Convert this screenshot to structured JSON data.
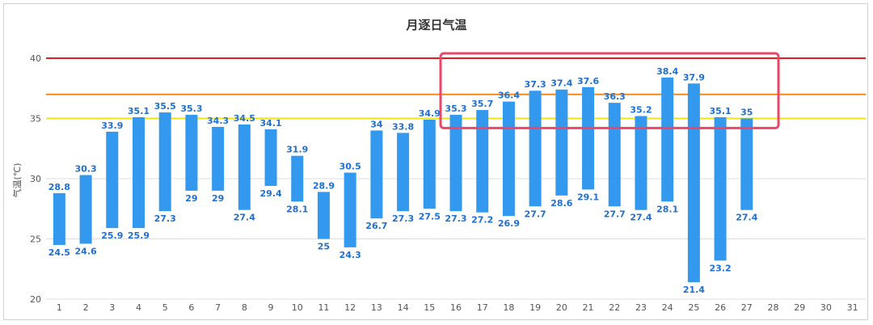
{
  "chart_data": {
    "type": "bar",
    "subtype": "floating-range",
    "title": "月逐日气温",
    "xlabel": "",
    "ylabel": "气温(℃)",
    "ylim": [
      20,
      41
    ],
    "yticks": [
      "20",
      "25",
      "30",
      "35",
      "40"
    ],
    "categories": [
      "1",
      "2",
      "3",
      "4",
      "5",
      "6",
      "7",
      "8",
      "9",
      "10",
      "11",
      "12",
      "13",
      "14",
      "15",
      "16",
      "17",
      "18",
      "19",
      "20",
      "21",
      "22",
      "23",
      "24",
      "25",
      "26",
      "27",
      "28",
      "29",
      "30",
      "31"
    ],
    "series": [
      {
        "high": [
          28.8,
          30.3,
          33.9,
          35.1,
          35.5,
          35.3,
          34.3,
          34.5,
          34.1,
          31.9,
          28.9,
          30.5,
          34,
          33.8,
          34.9,
          35.3,
          35.7,
          36.4,
          37.3,
          37.4,
          37.6,
          36.3,
          35.2,
          38.4,
          37.9,
          35.1,
          35
        ],
        "low": [
          24.5,
          24.6,
          25.9,
          25.9,
          27.3,
          29,
          29,
          27.4,
          29.4,
          28.1,
          25,
          24.3,
          26.7,
          27.3,
          27.5,
          27.3,
          27.2,
          26.9,
          27.7,
          28.6,
          29.1,
          27.7,
          27.4,
          28.1,
          21.4,
          23.2,
          27.4
        ],
        "high_labels": [
          "28.8",
          "30.3",
          "33.9",
          "35.1",
          "35.5",
          "35.3",
          "34.3",
          "34.5",
          "34.1",
          "31.9",
          "28.9",
          "30.5",
          "34",
          "33.8",
          "34.9",
          "35.3",
          "35.7",
          "36.4",
          "37.3",
          "37.4",
          "37.6",
          "36.3",
          "35.2",
          "38.4",
          "37.9",
          "35.1",
          "35"
        ],
        "low_labels": [
          "24.5",
          "24.6",
          "25.9",
          "25.9",
          "27.3",
          "29",
          "29",
          "27.4",
          "29.4",
          "28.1",
          "25",
          "24.3",
          "26.7",
          "27.3",
          "27.5",
          "27.3",
          "27.2",
          "26.9",
          "27.7",
          "28.6",
          "29.1",
          "27.7",
          "27.4",
          "28.1",
          "21.4",
          "23.2",
          "27.4"
        ],
        "color": "#3399ee"
      }
    ],
    "reference_lines": [
      {
        "value": 40,
        "color": "#e02020"
      },
      {
        "value": 37,
        "color": "#f08a1c"
      },
      {
        "value": 35,
        "color": "#f2e21a"
      }
    ],
    "highlight": {
      "x_from": "16",
      "x_to": "28",
      "y_from": 34.2,
      "y_to": 40.4,
      "color": "#e8486a"
    },
    "grid": true,
    "legend": "none"
  }
}
